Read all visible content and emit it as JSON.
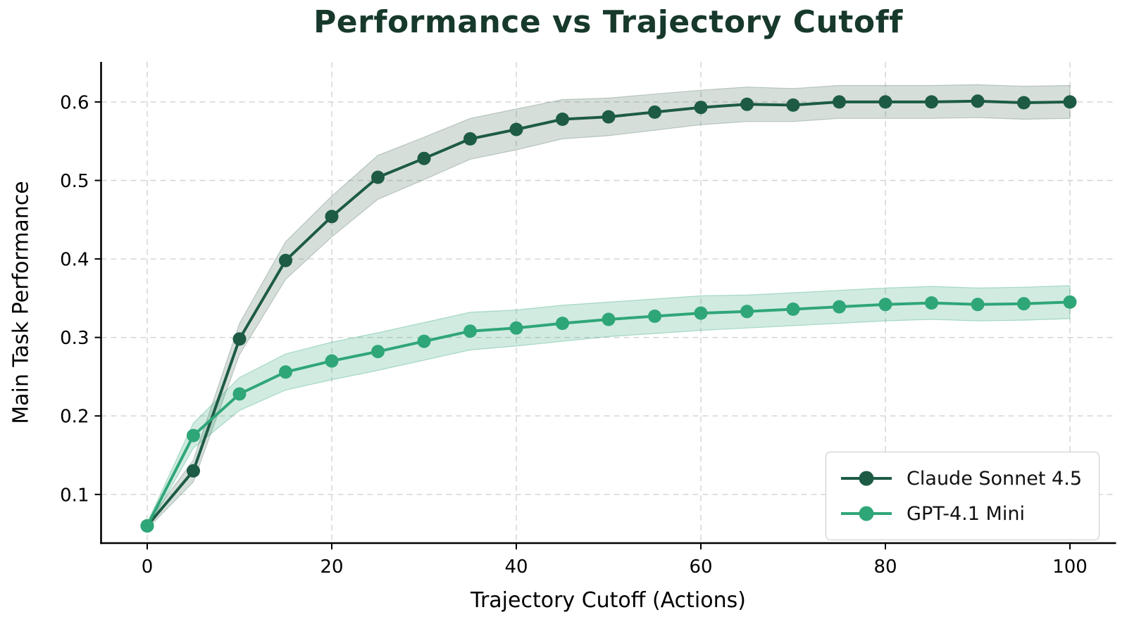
{
  "chart_data": {
    "type": "line",
    "title": "Performance vs Trajectory Cutoff",
    "xlabel": "Trajectory Cutoff (Actions)",
    "ylabel": "Main Task Performance",
    "title_color": "#17392b",
    "grid_color": "#d2d2d2",
    "axis_color": "#000000",
    "grid": true,
    "legend_position": "lower right",
    "xlim": [
      -5,
      105
    ],
    "ylim": [
      0.038,
      0.651
    ],
    "xticks": [
      0,
      20,
      40,
      60,
      80,
      100
    ],
    "yticks": [
      0.1,
      0.2,
      0.3,
      0.4,
      0.5,
      0.6
    ],
    "x": [
      0,
      5,
      10,
      15,
      20,
      25,
      30,
      35,
      40,
      45,
      50,
      55,
      60,
      65,
      70,
      75,
      80,
      85,
      90,
      95,
      100
    ],
    "series": [
      {
        "name": "Claude Sonnet 4.5",
        "color": "#1d5b45",
        "band_color": "#5d7a6d",
        "band_opacity": 0.25,
        "values": [
          0.06,
          0.13,
          0.298,
          0.398,
          0.454,
          0.504,
          0.528,
          0.553,
          0.565,
          0.578,
          0.581,
          0.587,
          0.593,
          0.597,
          0.596,
          0.6,
          0.6,
          0.6,
          0.601,
          0.599,
          0.6
        ],
        "band": [
          0.004,
          0.014,
          0.02,
          0.024,
          0.026,
          0.028,
          0.027,
          0.026,
          0.026,
          0.025,
          0.024,
          0.023,
          0.022,
          0.022,
          0.021,
          0.021,
          0.021,
          0.021,
          0.021,
          0.021,
          0.021
        ]
      },
      {
        "name": "GPT-4.1 Mini",
        "color": "#2fa678",
        "band_color": "#2fa678",
        "band_opacity": 0.22,
        "values": [
          0.06,
          0.175,
          0.228,
          0.256,
          0.27,
          0.282,
          0.295,
          0.308,
          0.312,
          0.318,
          0.323,
          0.327,
          0.331,
          0.333,
          0.336,
          0.339,
          0.342,
          0.344,
          0.342,
          0.343,
          0.345
        ],
        "band": [
          0.004,
          0.016,
          0.021,
          0.023,
          0.024,
          0.024,
          0.024,
          0.024,
          0.023,
          0.023,
          0.022,
          0.022,
          0.022,
          0.021,
          0.021,
          0.021,
          0.021,
          0.021,
          0.021,
          0.021,
          0.021
        ]
      }
    ]
  }
}
